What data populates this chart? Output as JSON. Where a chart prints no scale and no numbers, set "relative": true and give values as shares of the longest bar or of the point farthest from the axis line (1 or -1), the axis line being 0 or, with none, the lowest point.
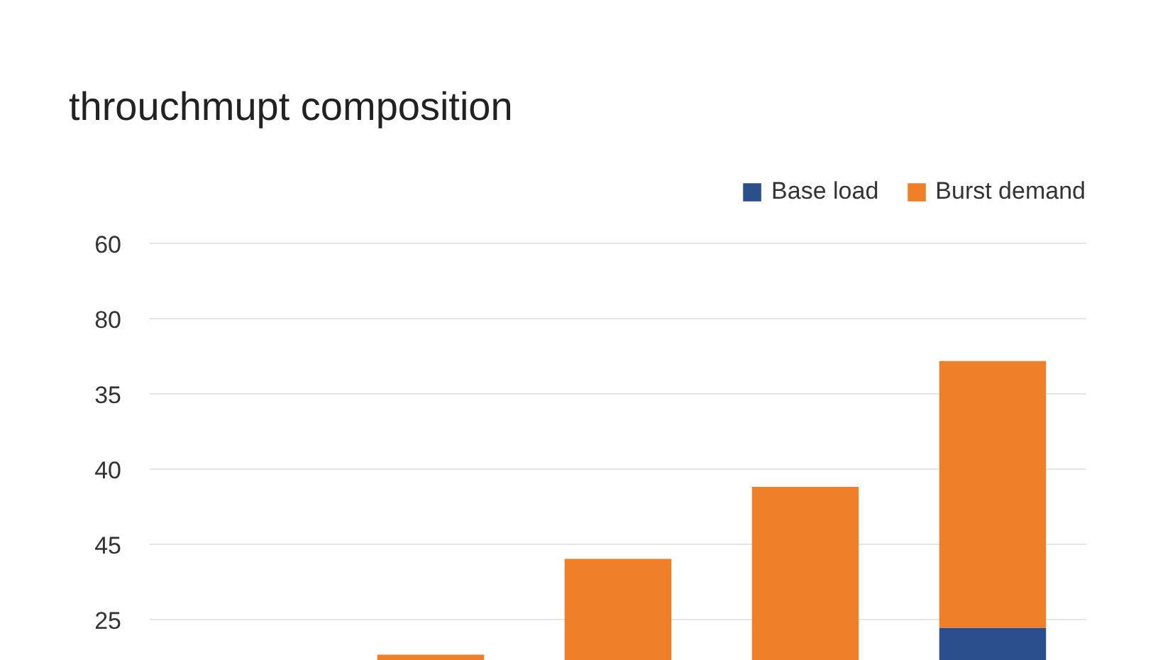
{
  "chart_data": {
    "type": "bar",
    "title": "throuchmupt composition",
    "stacked": true,
    "relative": true,
    "categories": [
      null,
      null,
      null,
      null
    ],
    "series": [
      {
        "name": "Base load",
        "color": "#2b4e8c",
        "values": [
          null,
          null,
          null,
          0.11
        ]
      },
      {
        "name": "Burst demand",
        "color": "#f07f2a",
        "values": [
          0.02,
          0.34,
          0.58,
          0.89
        ]
      }
    ],
    "annotations": [
      "25",
      "45",
      "40",
      "35",
      "80",
      "60"
    ],
    "grid": "y",
    "legend": "top right",
    "tick_labels": false
  }
}
